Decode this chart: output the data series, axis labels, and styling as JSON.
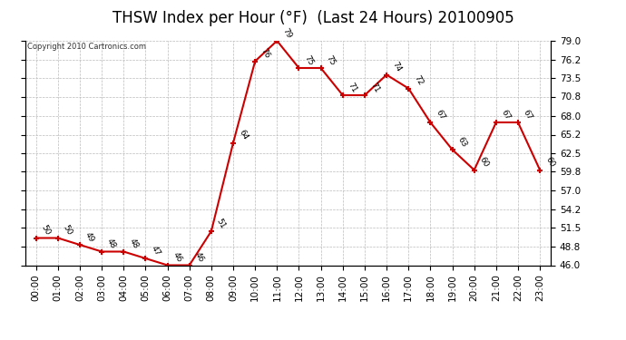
{
  "title": "THSW Index per Hour (°F)  (Last 24 Hours) 20100905",
  "copyright": "Copyright 2010 Cartronics.com",
  "hours": [
    "00:00",
    "01:00",
    "02:00",
    "03:00",
    "04:00",
    "05:00",
    "06:00",
    "07:00",
    "08:00",
    "09:00",
    "10:00",
    "11:00",
    "12:00",
    "13:00",
    "14:00",
    "15:00",
    "16:00",
    "17:00",
    "18:00",
    "19:00",
    "20:00",
    "21:00",
    "22:00",
    "23:00"
  ],
  "values": [
    50,
    50,
    49,
    48,
    48,
    47,
    46,
    46,
    51,
    64,
    76,
    79,
    75,
    75,
    71,
    71,
    74,
    72,
    67,
    63,
    60,
    67,
    67,
    60
  ],
  "ylim_min": 46.0,
  "ylim_max": 79.0,
  "yticks": [
    46.0,
    48.8,
    51.5,
    54.2,
    57.0,
    59.8,
    62.5,
    65.2,
    68.0,
    70.8,
    73.5,
    76.2,
    79.0
  ],
  "line_color": "#cc0000",
  "marker_color": "#cc0000",
  "bg_color": "#ffffff",
  "grid_color": "#bbbbbb",
  "title_fontsize": 12,
  "tick_fontsize": 7.5,
  "annotation_fontsize": 6.5
}
